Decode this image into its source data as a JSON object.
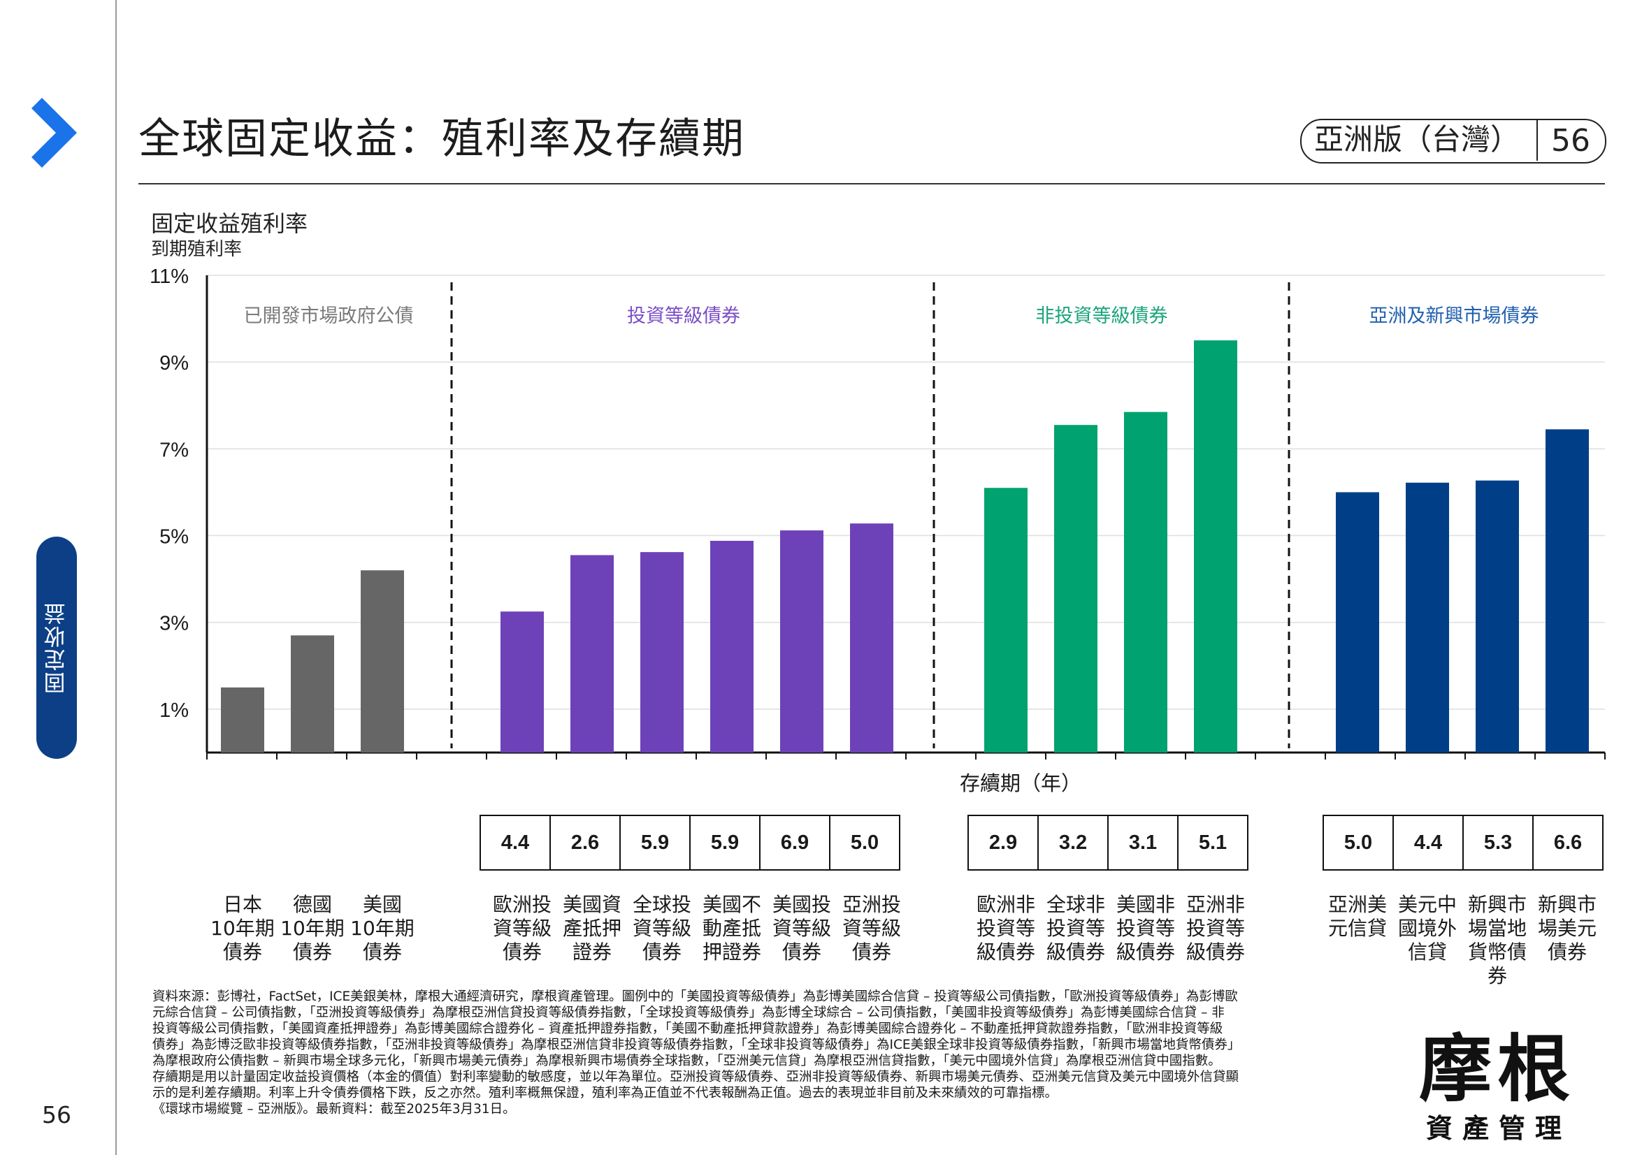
{
  "page": {
    "title": "全球固定收益：殖利率及存續期",
    "edition": "亞洲版（台灣）",
    "page_number": "56",
    "side_tab": "固定收益",
    "chevron_color": "#1a73e8",
    "side_tab_color": "#0d3f87"
  },
  "chart_data": {
    "type": "bar",
    "title": "固定收益殖利率",
    "subtitle": "到期殖利率",
    "ylabel": "到期殖利率",
    "ylim": [
      0,
      11
    ],
    "yticks": [
      {
        "label": "11%",
        "value": 11
      },
      {
        "label": "9%",
        "value": 9
      },
      {
        "label": "7%",
        "value": 7
      },
      {
        "label": "5%",
        "value": 5
      },
      {
        "label": "3%",
        "value": 3
      },
      {
        "label": "1%",
        "value": 1
      }
    ],
    "grid": true,
    "duration_label": "存續期（年）",
    "groups": [
      {
        "name": "已開發市場政府公債",
        "color": "#666666",
        "label_color": "#7a7a7a",
        "categories": [
          "日本\n10年期\n債券",
          "德國\n10年期\n債券",
          "美國\n10年期\n債券"
        ],
        "values": [
          1.5,
          2.7,
          4.2
        ],
        "durations": []
      },
      {
        "name": "投資等級債券",
        "color": "#6d42b8",
        "label_color": "#7a4ec8",
        "categories": [
          "歐洲投\n資等級\n債券",
          "美國資\n產抵押\n證券",
          "全球投\n資等級\n債券",
          "美國不\n動產抵\n押證券",
          "美國投\n資等級\n債券",
          "亞洲投\n資等級\n債券"
        ],
        "values": [
          3.25,
          4.55,
          4.62,
          4.88,
          5.12,
          5.28
        ],
        "durations": [
          "4.4",
          "2.6",
          "5.9",
          "5.9",
          "6.9",
          "5.0"
        ]
      },
      {
        "name": "非投資等級債券",
        "color": "#00a26f",
        "label_color": "#1aa57a",
        "categories": [
          "歐洲非\n投資等\n級債券",
          "全球非\n投資等\n級債券",
          "美國非\n投資等\n級債券",
          "亞洲非\n投資等\n級債券"
        ],
        "values": [
          6.1,
          7.55,
          7.85,
          9.5
        ],
        "durations": [
          "2.9",
          "3.2",
          "3.1",
          "5.1"
        ]
      },
      {
        "name": "亞洲及新興市場債券",
        "color": "#003f88",
        "label_color": "#1f5fae",
        "categories": [
          "亞洲美\n元信貸",
          "美元中\n國境外\n信貸",
          "新興市\n場當地\n貨幣債\n券",
          "新興市\n場美元\n債券"
        ],
        "values": [
          6.0,
          6.22,
          6.27,
          7.45
        ],
        "durations": [
          "5.0",
          "4.4",
          "5.3",
          "6.6"
        ]
      }
    ]
  },
  "footnote": {
    "lines": [
      "資料來源：彭博社，FactSet，ICE美銀美林，摩根大通經濟研究，摩根資產管理。圖例中的「美國投資等級債券」為彭博美國綜合信貸 – 投資等級公司債指數，「歐洲投資等級債券」為彭博歐",
      "元綜合信貸 – 公司債指數，「亞洲投資等級債券」為摩根亞洲信貸投資等級債券指數，「全球投資等級債券」為彭博全球綜合 – 公司債指數，「美國非投資等級債券」為彭博美國綜合信貸 – 非",
      "投資等級公司債指數，「美國資產抵押證券」為彭博美國綜合證券化 – 資產抵押證券指數，「美國不動產抵押貸款證券」為彭博美國綜合證券化 – 不動產抵押貸款證券指數，「歐洲非投資等級",
      "債券」為彭博泛歐非投資等級債券指數，「亞洲非投資等級債券」為摩根亞洲信貸非投資等級債券指數，「全球非投資等級債券」為ICE美銀全球非投資等級債券指數，「新興市場當地貨幣債券」",
      "為摩根政府公債指數 – 新興市場全球多元化，「新興市場美元債券」為摩根新興市場債券全球指數，「亞洲美元信貸」為摩根亞洲信貸指數，「美元中國境外信貸」為摩根亞洲信貸中國指數。",
      "存續期是用以計量固定收益投資價格（本金的價值）對利率變動的敏感度，並以年為單位。亞洲投資等級債券、亞洲非投資等級債券、新興市場美元債券、亞洲美元信貸及美元中國境外信貸顯",
      "示的是利差存續期。利率上升令債券價格下跌，反之亦然。殖利率概無保證，殖利率為正值並不代表報酬為正值。過去的表現並非目前及未來績效的可靠指標。",
      "《環球市場縱覽 – 亞洲版》。最新資料：截至2025年3月31日。"
    ]
  },
  "logo": {
    "main": "摩根",
    "sub": "資產管理"
  }
}
